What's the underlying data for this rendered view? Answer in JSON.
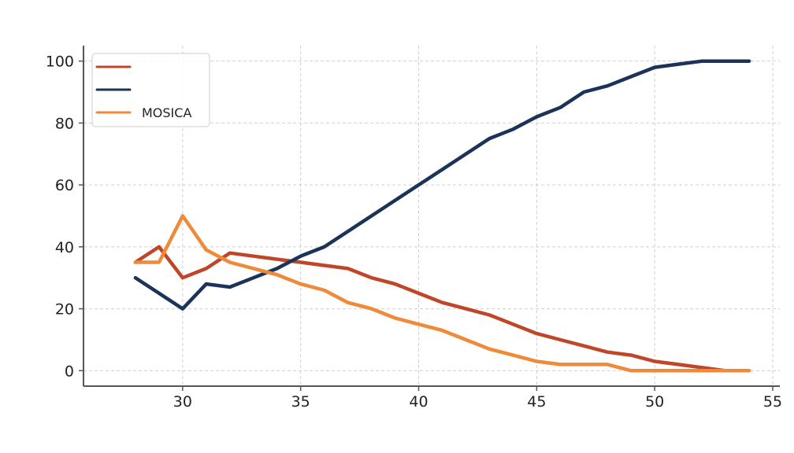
{
  "chart_data": {
    "type": "line",
    "title": "",
    "xlabel": "",
    "ylabel": "",
    "xlim": [
      25.8,
      55.3
    ],
    "ylim": [
      -5,
      105
    ],
    "xticks": [
      30,
      35,
      40,
      45,
      50,
      55
    ],
    "yticks": [
      0,
      20,
      40,
      60,
      80,
      100
    ],
    "grid": true,
    "legend_position": "top-left",
    "series": [
      {
        "name": "",
        "color": "#c0462a",
        "x": [
          28,
          29,
          30,
          31,
          32,
          33,
          34,
          35,
          36,
          37,
          38,
          39,
          40,
          41,
          42,
          43,
          44,
          45,
          46,
          47,
          48,
          49,
          50,
          51,
          52,
          53,
          54
        ],
        "y": [
          35,
          40,
          30,
          33,
          38,
          37,
          36,
          35,
          34,
          33,
          30,
          28,
          25,
          22,
          20,
          18,
          15,
          12,
          10,
          8,
          6,
          5,
          3,
          2,
          1,
          0,
          0
        ]
      },
      {
        "name": "",
        "color": "#1b3358",
        "x": [
          28,
          29,
          30,
          31,
          32,
          33,
          34,
          35,
          36,
          37,
          38,
          39,
          40,
          41,
          42,
          43,
          44,
          45,
          46,
          47,
          48,
          49,
          50,
          51,
          52,
          53,
          54
        ],
        "y": [
          30,
          25,
          20,
          28,
          27,
          30,
          33,
          37,
          40,
          45,
          50,
          55,
          60,
          65,
          70,
          75,
          78,
          82,
          85,
          90,
          92,
          95,
          98,
          99,
          100,
          100,
          100
        ]
      },
      {
        "name": "MOSICA",
        "color": "#ee8a38",
        "x": [
          28,
          29,
          30,
          31,
          32,
          33,
          34,
          35,
          36,
          37,
          38,
          39,
          40,
          41,
          42,
          43,
          44,
          45,
          46,
          47,
          48,
          49,
          50,
          51,
          52,
          53,
          54
        ],
        "y": [
          35,
          35,
          50,
          39,
          35,
          33,
          31,
          28,
          26,
          22,
          20,
          17,
          15,
          13,
          10,
          7,
          5,
          3,
          2,
          2,
          2,
          0,
          0,
          0,
          0,
          0,
          0
        ]
      }
    ]
  }
}
